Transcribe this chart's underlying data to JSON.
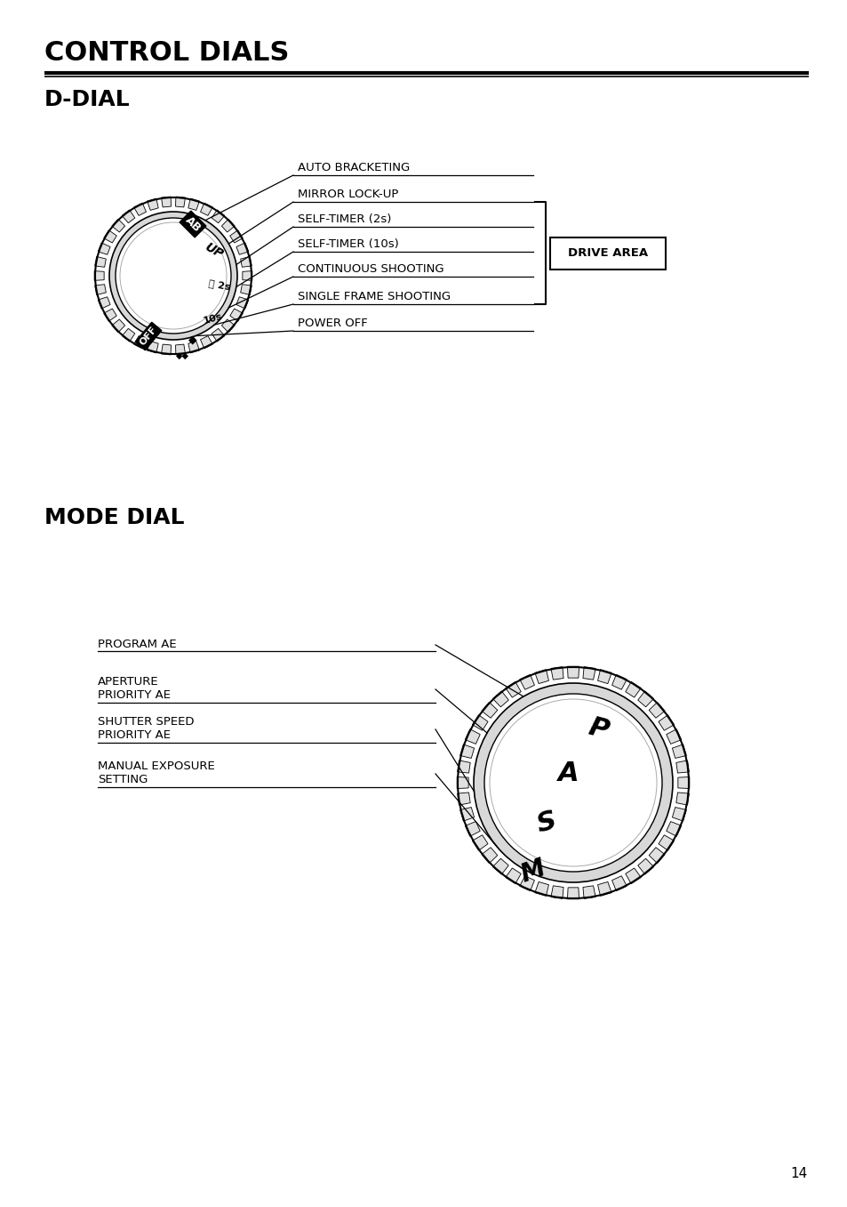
{
  "title": "CONTROL DIALS",
  "section1": "D-DIAL",
  "section2": "MODE DIAL",
  "page_number": "14",
  "bg_color": "#ffffff",
  "d_dial_labels": [
    "AUTO BRACKETING",
    "MIRROR LOCK-UP",
    "SELF-TIMER (2s)",
    "SELF-TIMER (10s)",
    "CONTINUOUS SHOOTING",
    "SINGLE FRAME SHOOTING",
    "POWER OFF"
  ],
  "d_dial_box_label": "DRIVE AREA",
  "mode_dial_labels": [
    "PROGRAM AE",
    "APERTURE\nPRIORITY AE",
    "SHUTTER SPEED\nPRIORITY AE",
    "MANUAL EXPOSURE\nSETTING"
  ],
  "figw": 9.54,
  "figh": 13.57,
  "dpi": 100
}
